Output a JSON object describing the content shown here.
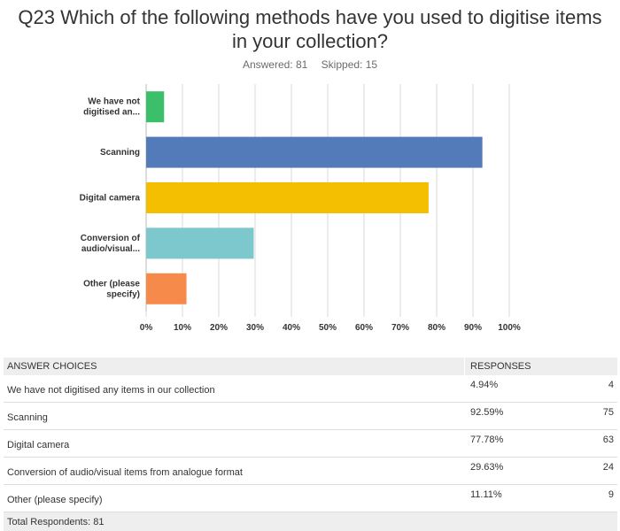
{
  "question": {
    "title": "Q23 Which of the following methods have you used to digitise items in your collection?",
    "answered_label": "Answered: 81",
    "skipped_label": "Skipped: 15"
  },
  "chart_data": {
    "type": "bar",
    "orientation": "horizontal",
    "title": "",
    "xlabel": "",
    "ylabel": "",
    "categories": [
      "We have not digitised an...",
      "Scanning",
      "Digital camera",
      "Conversion of audio/visual...",
      "Other (please specify)"
    ],
    "values": [
      4.94,
      92.59,
      77.78,
      29.63,
      11.11
    ],
    "colors": [
      "#3bbf6b",
      "#537bba",
      "#f4bf00",
      "#7cc8cc",
      "#f58a4b"
    ],
    "xlim": [
      0,
      100
    ],
    "xticks": [
      "0%",
      "10%",
      "20%",
      "30%",
      "40%",
      "50%",
      "60%",
      "70%",
      "80%",
      "90%",
      "100%"
    ],
    "grid": true
  },
  "table": {
    "headers": {
      "choice": "ANSWER CHOICES",
      "responses": "RESPONSES"
    },
    "rows": [
      {
        "choice": "We have not digitised any items in our collection",
        "pct": "4.94%",
        "count": "4"
      },
      {
        "choice": "Scanning",
        "pct": "92.59%",
        "count": "75"
      },
      {
        "choice": "Digital camera",
        "pct": "77.78%",
        "count": "63"
      },
      {
        "choice": "Conversion of audio/visual items from analogue format",
        "pct": "29.63%",
        "count": "24"
      },
      {
        "choice": "Other (please specify)",
        "pct": "11.11%",
        "count": "9"
      }
    ],
    "total": "Total Respondents: 81"
  }
}
